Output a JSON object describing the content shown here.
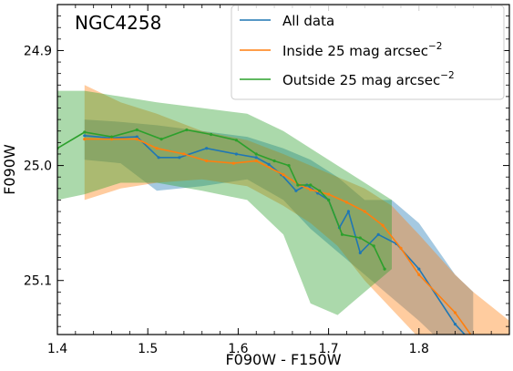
{
  "chart_data": {
    "type": "line",
    "title": "NGC4258",
    "xlabel": "F090W - F150W",
    "ylabel": "F090W",
    "xlim": [
      1.4,
      1.9
    ],
    "ylim": [
      25.147,
      24.86
    ],
    "y_inverted": true,
    "xticks": [
      1.4,
      1.5,
      1.6,
      1.7,
      1.8
    ],
    "xtick_labels": [
      "1.4",
      "1.5",
      "1.6",
      "1.7",
      "1.8"
    ],
    "yticks": [
      24.9,
      25.0,
      25.1
    ],
    "ytick_labels": [
      "24.9",
      "25.0",
      "25.1"
    ],
    "grid": false,
    "legend_position": "top-right",
    "series": [
      {
        "name": "All data",
        "color": "#1f77b4",
        "x": [
          1.43,
          1.458,
          1.488,
          1.512,
          1.535,
          1.565,
          1.598,
          1.62,
          1.634,
          1.648,
          1.664,
          1.676,
          1.688,
          1.7,
          1.712,
          1.722,
          1.735,
          1.755,
          1.775,
          1.8,
          1.84,
          1.86
        ],
        "y": [
          24.974,
          24.976,
          24.975,
          24.993,
          24.993,
          24.985,
          24.99,
          24.993,
          24.999,
          25.008,
          25.022,
          25.017,
          25.024,
          25.03,
          25.054,
          25.04,
          25.076,
          25.06,
          25.068,
          25.09,
          25.138,
          25.155
        ],
        "bands": {
          "x": [
            1.43,
            1.47,
            1.51,
            1.56,
            1.61,
            1.65,
            1.68,
            1.71,
            1.74,
            1.77,
            1.8,
            1.84,
            1.86
          ],
          "lower": [
            24.96,
            24.962,
            24.965,
            24.97,
            24.975,
            24.985,
            24.995,
            25.01,
            25.03,
            25.03,
            25.05,
            25.095,
            25.11
          ],
          "upper": [
            24.995,
            24.998,
            25.022,
            25.018,
            25.012,
            25.03,
            25.055,
            25.075,
            25.095,
            25.115,
            25.135,
            25.165,
            25.175
          ]
        }
      },
      {
        "name": "Inside 25 mag arcsec$^{-2}$",
        "color": "#ff7f0e",
        "x": [
          1.43,
          1.46,
          1.488,
          1.51,
          1.54,
          1.565,
          1.595,
          1.62,
          1.65,
          1.668,
          1.68,
          1.7,
          1.72,
          1.74,
          1.76,
          1.78,
          1.8,
          1.84,
          1.86
        ],
        "y": [
          24.977,
          24.977,
          24.977,
          24.985,
          24.99,
          24.996,
          24.998,
          24.996,
          25.008,
          25.017,
          25.021,
          25.025,
          25.032,
          25.04,
          25.052,
          25.072,
          25.095,
          25.128,
          25.15
        ],
        "bands": {
          "x": [
            1.43,
            1.47,
            1.51,
            1.56,
            1.61,
            1.65,
            1.68,
            1.71,
            1.74,
            1.77,
            1.8,
            1.84,
            1.86,
            1.9
          ],
          "lower": [
            24.93,
            24.945,
            24.955,
            24.97,
            24.978,
            24.99,
            25.0,
            25.01,
            25.02,
            25.035,
            25.06,
            25.095,
            25.11,
            25.135
          ],
          "upper": [
            25.03,
            25.02,
            25.015,
            25.012,
            25.018,
            25.035,
            25.05,
            25.07,
            25.1,
            25.125,
            25.15,
            25.17,
            25.175,
            25.17
          ]
        }
      },
      {
        "name": "Outside 25 mag arcsec$^{-2}$",
        "color": "#2ca02c",
        "x": [
          1.4,
          1.43,
          1.46,
          1.488,
          1.515,
          1.543,
          1.57,
          1.598,
          1.62,
          1.64,
          1.656,
          1.666,
          1.68,
          1.69,
          1.7,
          1.715,
          1.735,
          1.75,
          1.762
        ],
        "y": [
          24.985,
          24.971,
          24.975,
          24.969,
          24.977,
          24.969,
          24.973,
          24.978,
          24.99,
          24.996,
          25.0,
          25.017,
          25.017,
          25.022,
          25.03,
          25.06,
          25.063,
          25.07,
          25.09
        ],
        "bands": {
          "x": [
            1.4,
            1.43,
            1.47,
            1.51,
            1.56,
            1.61,
            1.65,
            1.68,
            1.71,
            1.74,
            1.77
          ],
          "lower": [
            24.935,
            24.935,
            24.94,
            24.945,
            24.95,
            24.955,
            24.97,
            24.985,
            25.0,
            25.015,
            25.03
          ],
          "upper": [
            25.03,
            25.025,
            25.015,
            25.015,
            25.022,
            25.03,
            25.06,
            25.12,
            25.13,
            25.11,
            25.09
          ]
        }
      }
    ]
  }
}
